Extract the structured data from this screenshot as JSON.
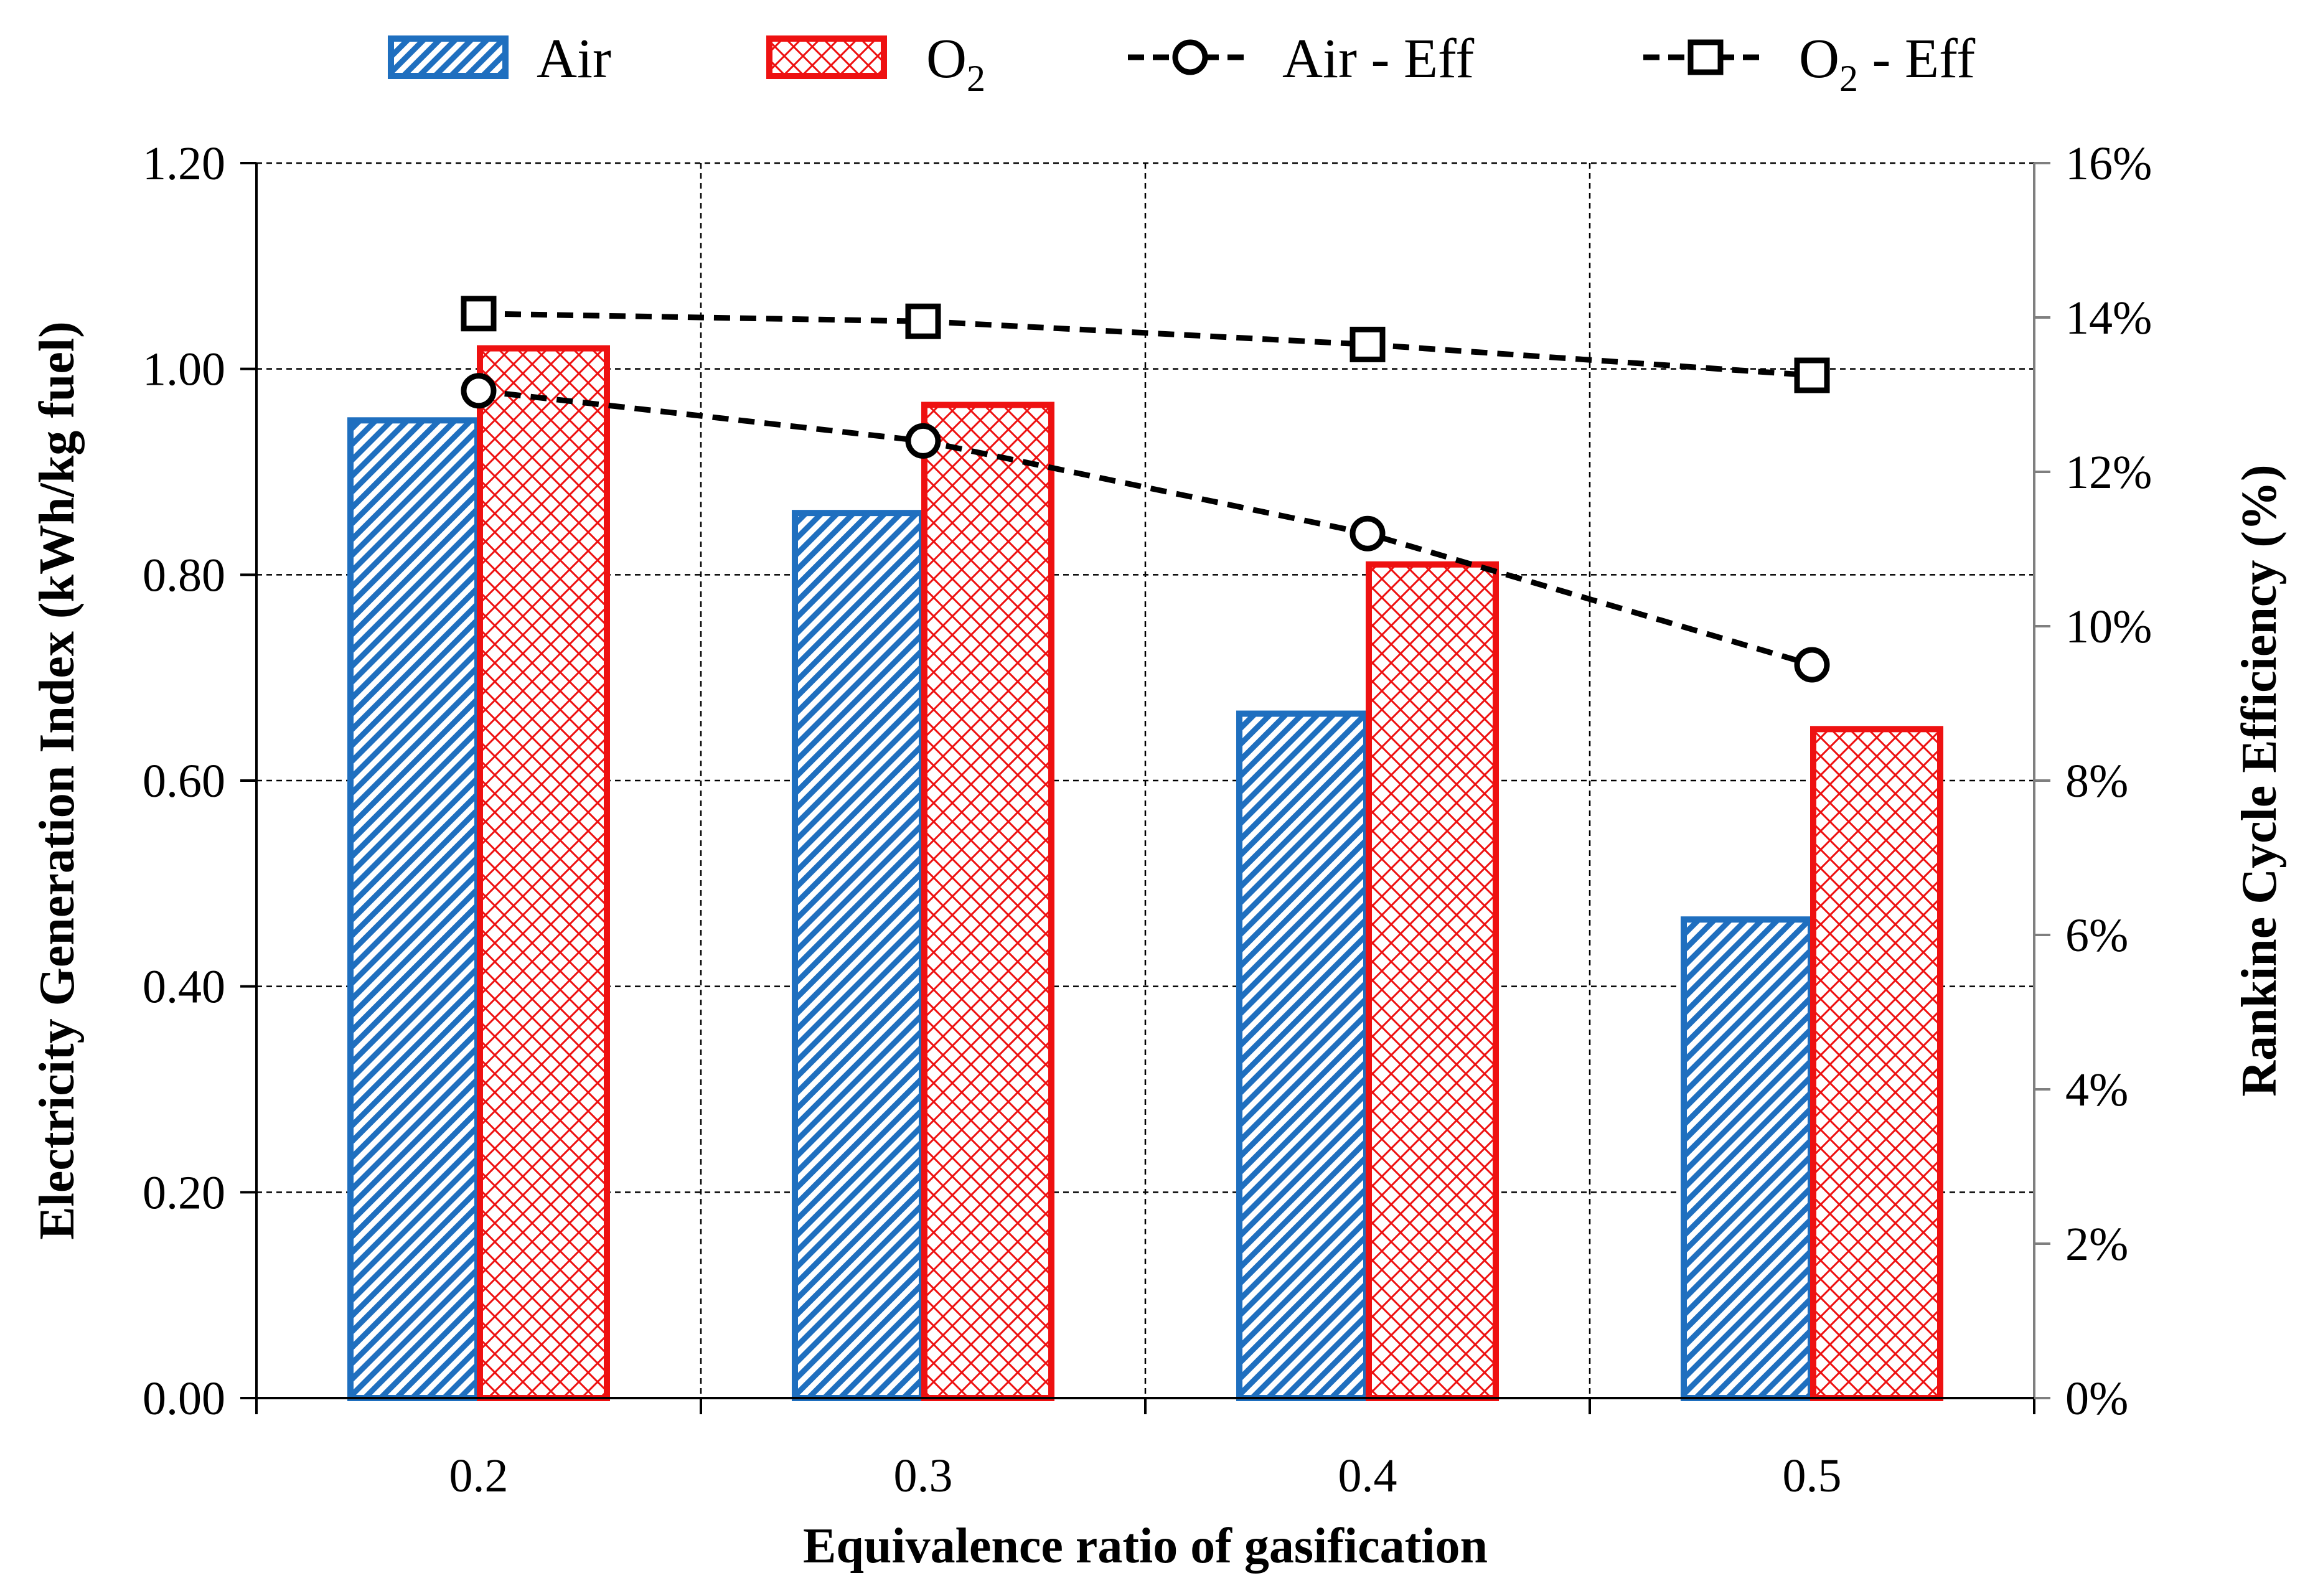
{
  "chart_data": {
    "type": "bar",
    "title": "",
    "xlabel": "Equivalence ratio of gasification",
    "ylabel": "Electricity Generation Index (kWh/kg fuel)",
    "y2label": "Rankine Cycle Efficiency (%)",
    "categories": [
      "0.2",
      "0.3",
      "0.4",
      "0.5"
    ],
    "ylim": [
      0,
      1.2
    ],
    "y2lim": [
      0,
      16
    ],
    "yticks": [
      "0.00",
      "0.20",
      "0.40",
      "0.60",
      "0.80",
      "1.00",
      "1.20"
    ],
    "y2ticks": [
      "0%",
      "2%",
      "4%",
      "6%",
      "8%",
      "10%",
      "12%",
      "14%",
      "16%"
    ],
    "grid": true,
    "legend_position": "top",
    "series": [
      {
        "name": "Air",
        "kind": "bar",
        "axis": "left",
        "color": "#1f6fbf",
        "values": [
          0.95,
          0.86,
          0.665,
          0.465
        ]
      },
      {
        "name": "O",
        "sub": "2",
        "kind": "bar",
        "axis": "left",
        "color": "#ee1111",
        "values": [
          1.02,
          0.965,
          0.81,
          0.65
        ]
      },
      {
        "name": "Air - Eff",
        "kind": "line",
        "marker": "circle",
        "axis": "right",
        "color": "#000000",
        "values": [
          13.05,
          12.4,
          11.2,
          9.5
        ]
      },
      {
        "name": "O",
        "sub": "2",
        "suffix": " - Eff",
        "kind": "line",
        "marker": "square",
        "axis": "right",
        "color": "#000000",
        "values": [
          14.05,
          13.95,
          13.65,
          13.25
        ]
      }
    ]
  }
}
